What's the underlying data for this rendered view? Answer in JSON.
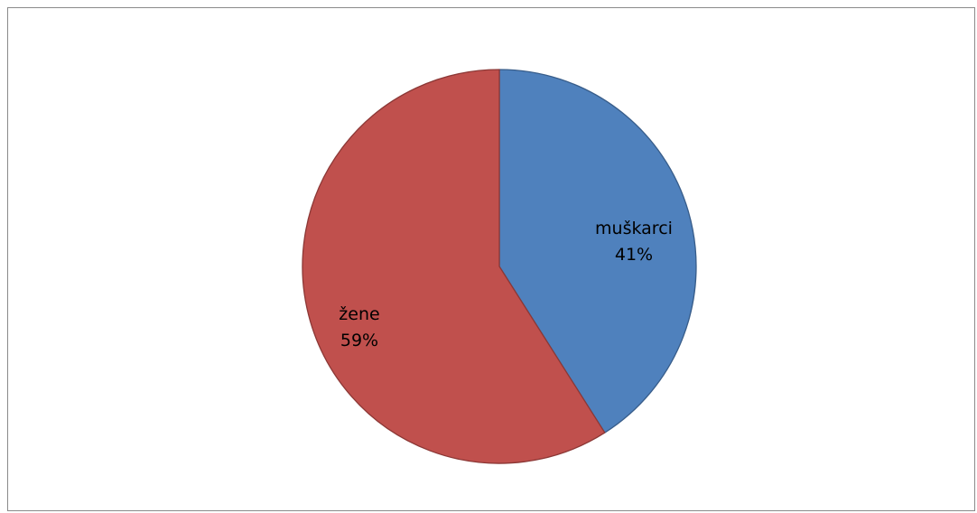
{
  "chart_data": {
    "type": "pie",
    "title": "",
    "slices": [
      {
        "label": "muškarci",
        "value": 41,
        "value_label": "41%",
        "color": "#4f81bd",
        "stroke": "#385d8a"
      },
      {
        "label": "žene",
        "value": 59,
        "value_label": "59%",
        "color": "#c0504d",
        "stroke": "#8c3836"
      }
    ],
    "start_angle": "12 o'clock",
    "direction": "clockwise",
    "legend": "none",
    "data_labels": "inside"
  }
}
